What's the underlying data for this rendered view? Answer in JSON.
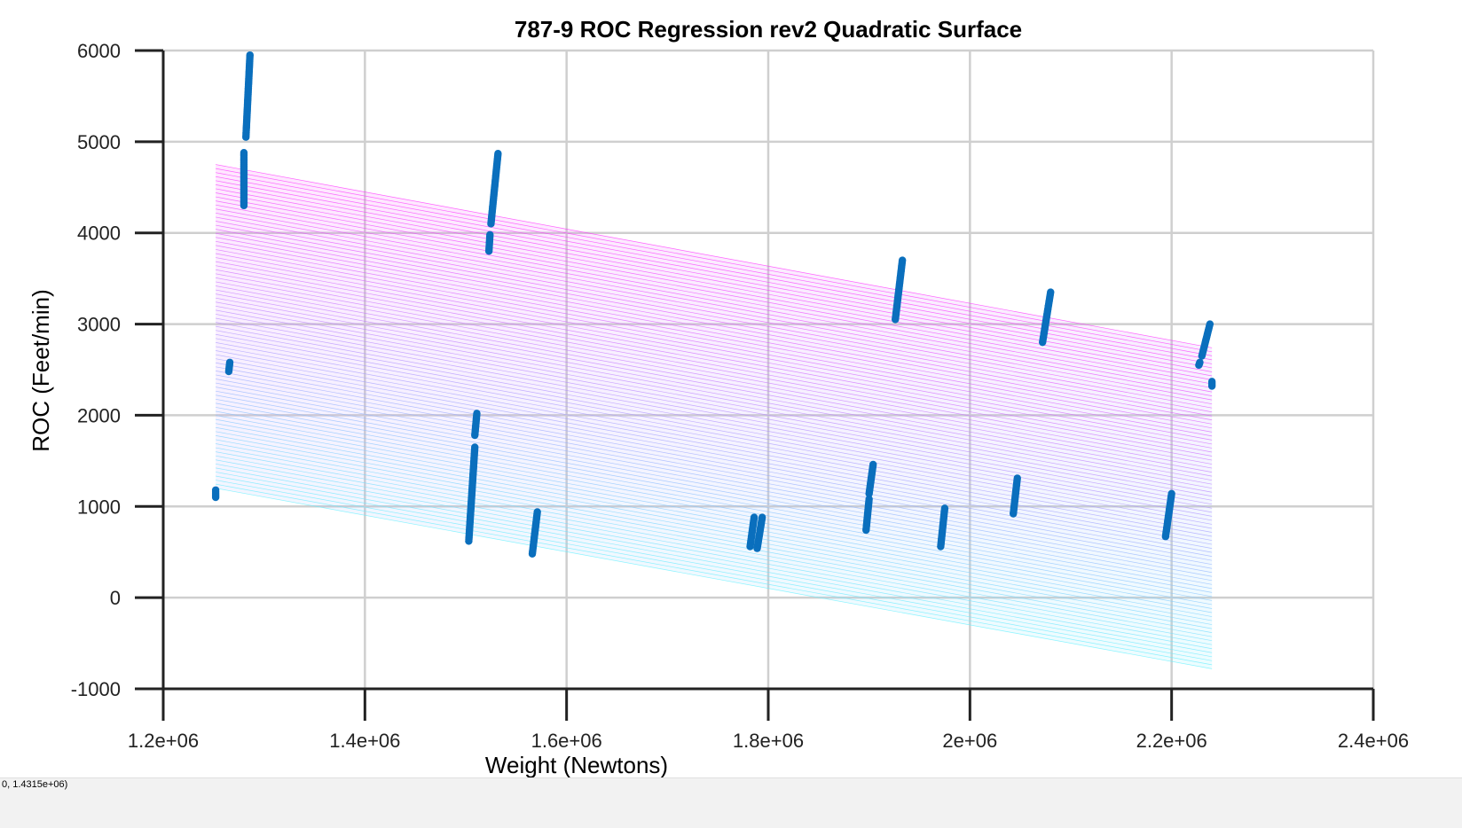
{
  "status": {
    "coords": "0, 1.4315e+06)"
  },
  "chart_data": {
    "type": "scatter",
    "title": "787-9 ROC Regression rev2 Quadratic Surface",
    "xlabel": "Weight (Newtons)",
    "ylabel": "ROC (Feet/min)",
    "xlim": [
      1200000,
      2400000
    ],
    "ylim": [
      -1000,
      6000
    ],
    "x_ticks": [
      1200000,
      1400000,
      1600000,
      1800000,
      2000000,
      2200000,
      2400000
    ],
    "x_tick_labels": [
      "1.2e+06",
      "1.4e+06",
      "1.6e+06",
      "1.8e+06",
      "2e+06",
      "2.2e+06",
      "2.4e+06"
    ],
    "y_ticks": [
      -1000,
      0,
      1000,
      2000,
      3000,
      4000,
      5000,
      6000
    ],
    "y_tick_labels": [
      "-1000",
      "0",
      "1000",
      "2000",
      "3000",
      "4000",
      "5000",
      "6000"
    ],
    "grid": true,
    "surface": {
      "type": "mesh",
      "x_range": [
        1252000,
        2240000
      ],
      "top_roc": [
        4750,
        2740
      ],
      "bottom_roc": [
        1200,
        -780
      ],
      "color_low": "#66f0ff",
      "color_high": "#ff33ff"
    },
    "series": [
      {
        "color": "#0a6fbd",
        "segments": [
          {
            "x": [
              1282000,
              1286000
            ],
            "y": [
              5050,
              5950
            ]
          },
          {
            "x": [
              1280000,
              1280000
            ],
            "y": [
              4300,
              4880
            ]
          },
          {
            "x": [
              1265000,
              1266000
            ],
            "y": [
              2480,
              2580
            ]
          },
          {
            "x": [
              1252000,
              1252000
            ],
            "y": [
              1100,
              1180
            ]
          },
          {
            "x": [
              1525000,
              1532000
            ],
            "y": [
              4100,
              4870
            ]
          },
          {
            "x": [
              1523000,
              1524000
            ],
            "y": [
              3800,
              3980
            ]
          },
          {
            "x": [
              1509000,
              1511000
            ],
            "y": [
              1780,
              2020
            ]
          },
          {
            "x": [
              1503000,
              1509000
            ],
            "y": [
              620,
              1650
            ]
          },
          {
            "x": [
              1566000,
              1571000
            ],
            "y": [
              480,
              940
            ]
          },
          {
            "x": [
              1782000,
              1786000
            ],
            "y": [
              560,
              880
            ]
          },
          {
            "x": [
              1789000,
              1794000
            ],
            "y": [
              540,
              880
            ]
          },
          {
            "x": [
              1897000,
              1900000
            ],
            "y": [
              740,
              1080
            ]
          },
          {
            "x": [
              1900000,
              1904000
            ],
            "y": [
              1140,
              1460
            ]
          },
          {
            "x": [
              1926000,
              1933000
            ],
            "y": [
              3050,
              3700
            ]
          },
          {
            "x": [
              1971000,
              1975000
            ],
            "y": [
              560,
              980
            ]
          },
          {
            "x": [
              2043000,
              2047000
            ],
            "y": [
              920,
              1310
            ]
          },
          {
            "x": [
              2072000,
              2080000
            ],
            "y": [
              2800,
              3350
            ]
          },
          {
            "x": [
              2194000,
              2200000
            ],
            "y": [
              670,
              1140
            ]
          },
          {
            "x": [
              2227000,
              2228000
            ],
            "y": [
              2550,
              2580
            ]
          },
          {
            "x": [
              2230000,
              2238000
            ],
            "y": [
              2650,
              3000
            ]
          },
          {
            "x": [
              2240000,
              2240000
            ],
            "y": [
              2320,
              2370
            ]
          }
        ]
      }
    ]
  }
}
